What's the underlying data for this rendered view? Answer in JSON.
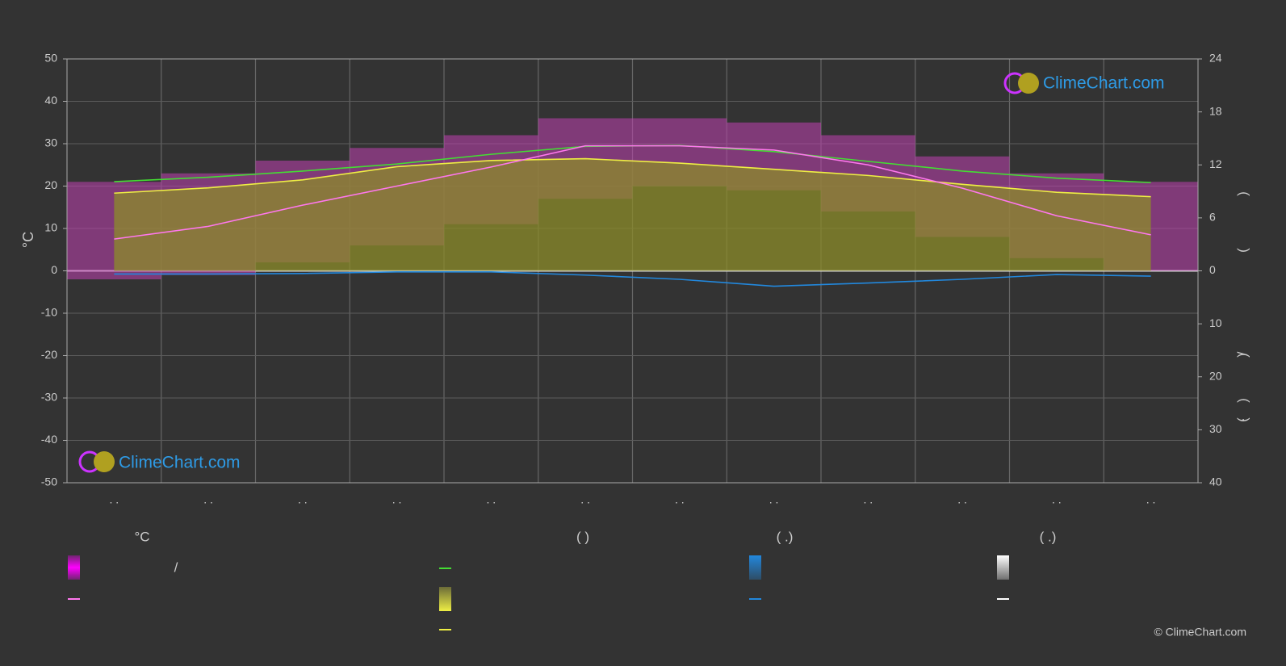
{
  "chart_data": {
    "type": "line",
    "categories": [
      ". .",
      ". .",
      ". .",
      ". .",
      ". .",
      ". .",
      ". .",
      ". .",
      ". .",
      ". .",
      ". .",
      ". ."
    ],
    "ylabel": "°C",
    "ylim": [
      -50,
      50
    ],
    "yticks": [
      -50,
      -40,
      -30,
      -20,
      -10,
      0,
      10,
      20,
      30,
      40,
      50
    ],
    "y2lim": [
      0,
      24
    ],
    "y2ticks": [
      0,
      6,
      12,
      18,
      24
    ],
    "y3lim": [
      0,
      40
    ],
    "y3ticks": [
      10,
      20,
      30,
      40
    ],
    "y2label_parts": [
      ")",
      "(",
      ")",
      "/",
      ")",
      "·",
      "("
    ],
    "grid": true,
    "range": {
      "color": "#c040b0",
      "min": [
        -2,
        -1,
        2,
        6,
        11,
        17,
        20,
        19,
        14,
        8,
        3,
        0
      ],
      "max": [
        21,
        23,
        26,
        29,
        32,
        36,
        36,
        35,
        32,
        27,
        23,
        21
      ]
    },
    "series": [
      {
        "color": "#44dd33",
        "axis": "y2",
        "values": [
          10.1,
          10.6,
          11.3,
          12.1,
          13.2,
          14.1,
          14.2,
          13.5,
          12.4,
          11.3,
          10.5,
          10.0
        ]
      },
      {
        "color": "#eeee44",
        "axis": "y2",
        "area": "#8c8c2a",
        "values": [
          8.8,
          9.4,
          10.3,
          11.8,
          12.5,
          12.7,
          12.2,
          11.5,
          10.8,
          9.8,
          8.9,
          8.4
        ]
      },
      {
        "color": "#ff77ee",
        "axis": "y",
        "values": [
          7.5,
          10.5,
          15.5,
          20,
          24.5,
          29.5,
          29.5,
          28.5,
          25,
          19.5,
          13,
          8.5
        ]
      },
      {
        "color": "#2288dd",
        "axis": "y3",
        "values": [
          0.6,
          0.6,
          0.5,
          0.2,
          0.2,
          0.8,
          1.6,
          2.9,
          2.3,
          1.6,
          0.7,
          1.0
        ]
      }
    ],
    "legend": {
      "headings": [
        "°C",
        "(          )",
        "(   .)",
        "(   .)"
      ],
      "slash": "/"
    },
    "logo": "ClimeChart.com",
    "copyright": "© ClimeChart.com"
  }
}
